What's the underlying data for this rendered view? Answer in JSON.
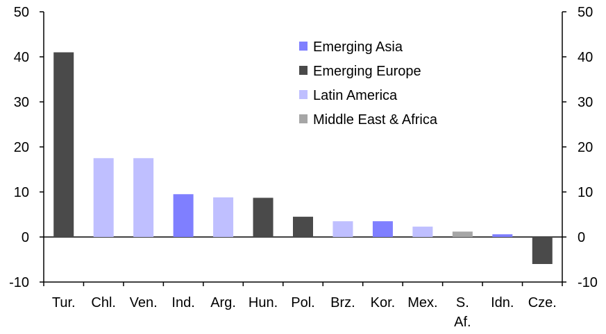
{
  "chart_data": {
    "type": "bar",
    "categories": [
      "Tur.",
      "Chl.",
      "Ven.",
      "Ind.",
      "Arg.",
      "Hun.",
      "Pol.",
      "Brz.",
      "Kor.",
      "Mex.",
      "S. Af.",
      "Idn.",
      "Cze."
    ],
    "values": [
      41,
      17.5,
      17.5,
      9.5,
      8.8,
      8.7,
      4.5,
      3.5,
      3.5,
      2.3,
      1.2,
      0.6,
      -6
    ],
    "groups": [
      "Emerging Europe",
      "Latin America",
      "Latin America",
      "Emerging Asia",
      "Latin America",
      "Emerging Europe",
      "Emerging Europe",
      "Latin America",
      "Emerging Asia",
      "Latin America",
      "Middle East & Africa",
      "Emerging Asia",
      "Emerging Europe"
    ],
    "legend": [
      {
        "name": "Emerging Asia",
        "color": "#7f7fff"
      },
      {
        "name": "Emerging Europe",
        "color": "#4a4a4a"
      },
      {
        "name": "Latin America",
        "color": "#bfbfff"
      },
      {
        "name": "Middle East & Africa",
        "color": "#a6a6a6"
      }
    ],
    "ylim": [
      -10,
      50
    ],
    "yticks": [
      -10,
      0,
      10,
      20,
      30,
      40,
      50
    ],
    "y_axis_right": true,
    "grid": false,
    "legend_position": "top-right",
    "title": "",
    "xlabel": "",
    "ylabel": ""
  }
}
